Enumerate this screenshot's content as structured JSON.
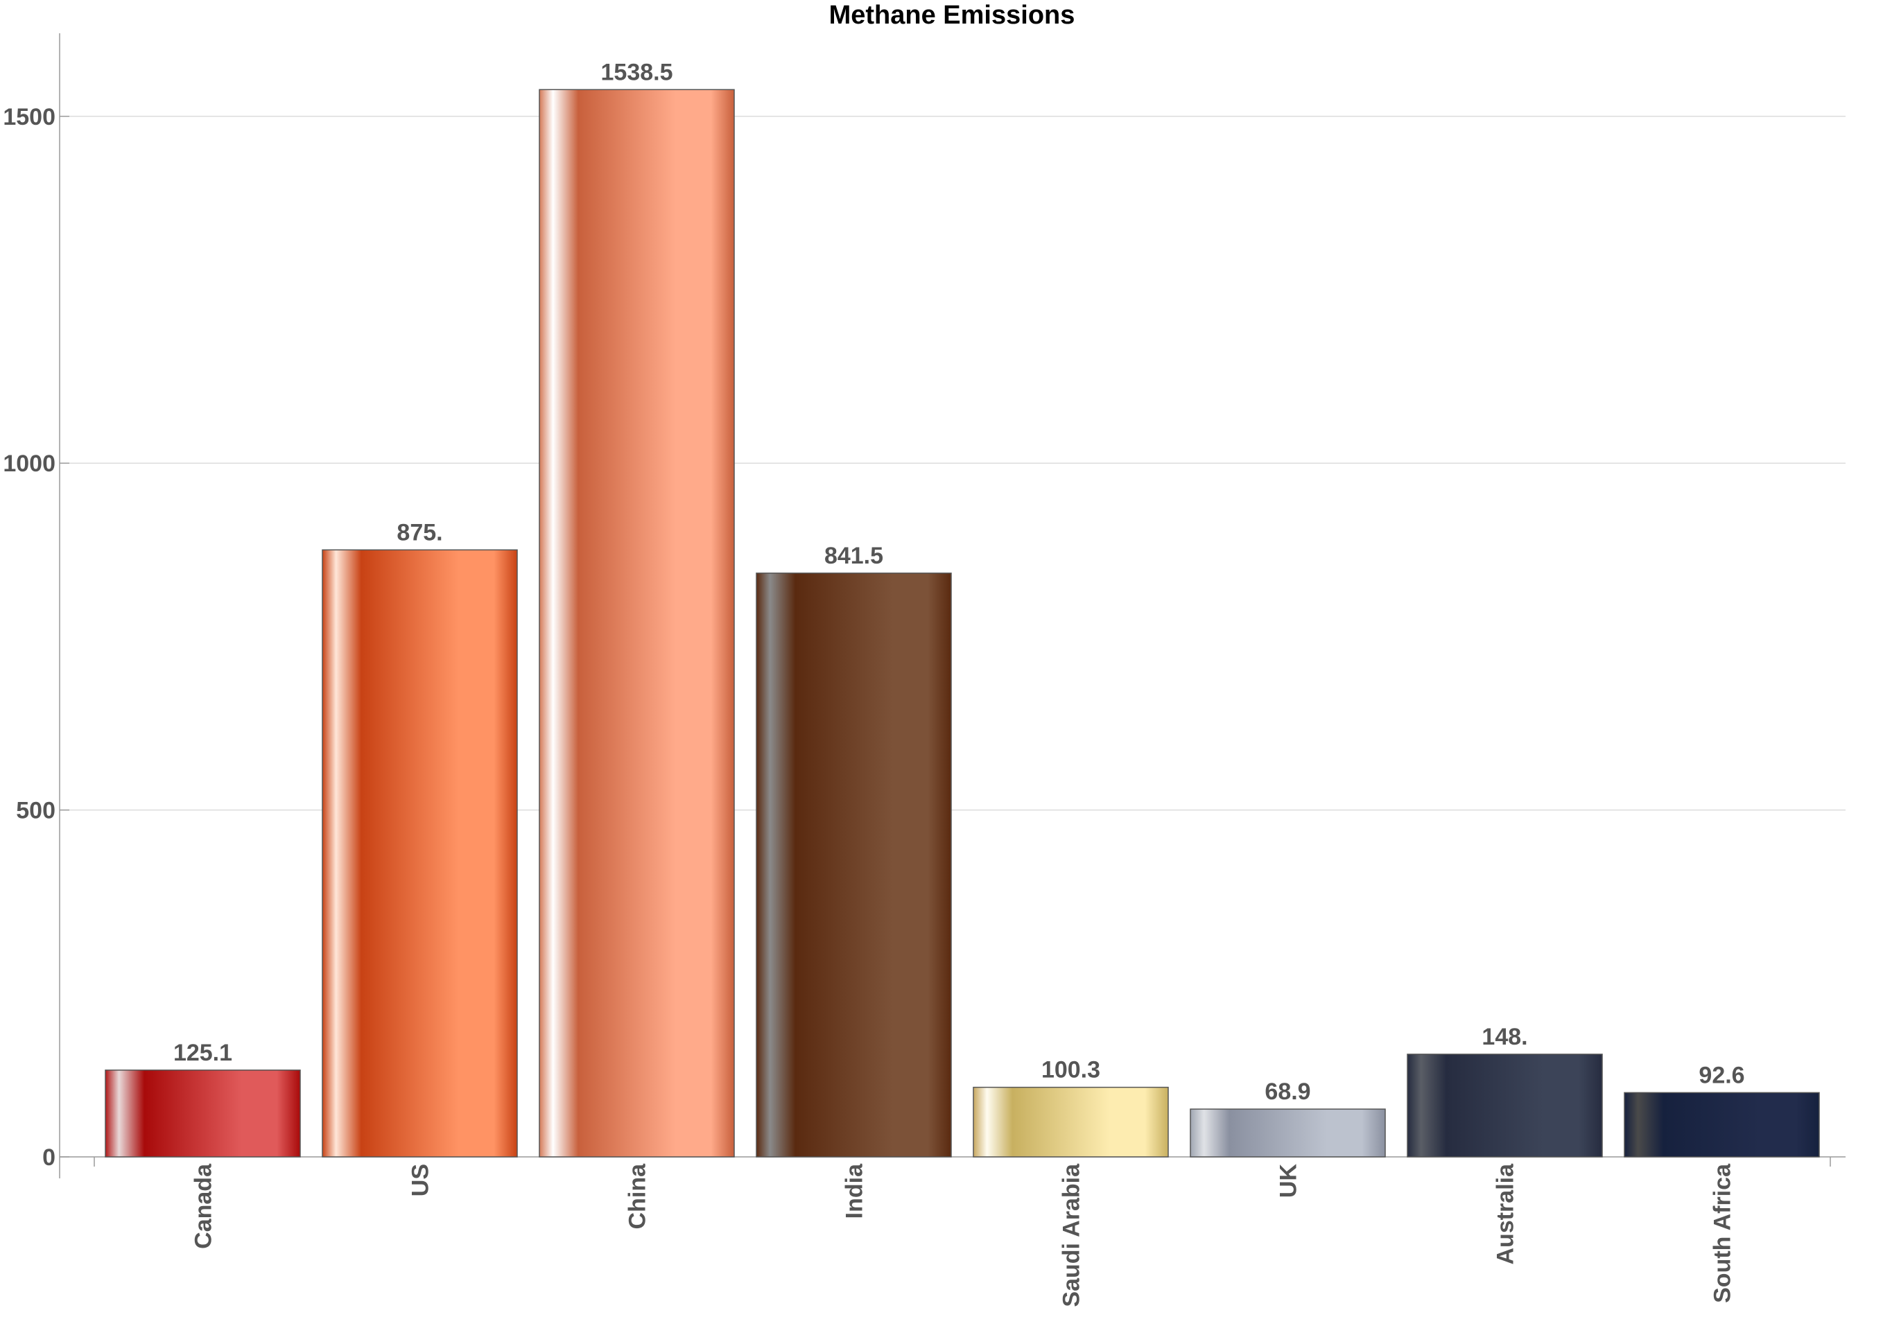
{
  "chart_data": {
    "type": "bar",
    "title": "Methane Emissions",
    "xlabel": "",
    "ylabel": "",
    "categories": [
      "Canada",
      "US",
      "China",
      "India",
      "Saudi Arabia",
      "UK",
      "Australia",
      "South Africa"
    ],
    "values": [
      125.1,
      875.0,
      1538.5,
      841.5,
      100.3,
      68.9,
      148.0,
      92.6
    ],
    "value_labels": [
      "125.1",
      "875.",
      "1538.5",
      "841.5",
      "100.3",
      "68.9",
      "148.",
      "92.6"
    ],
    "ylim": [
      0,
      1620
    ],
    "yticks": [
      0,
      500,
      1000,
      1500
    ],
    "ytick_labels": [
      "0",
      "500",
      "1000",
      "1500"
    ],
    "grid": true,
    "legend": "none",
    "bar_colors": [
      {
        "highlight": "#e8d8d8",
        "dark": "#a80a0a",
        "mid": "#e05a5a",
        "edge": "#b01818"
      },
      {
        "highlight": "#ffe6d8",
        "dark": "#c84214",
        "mid": "#ff9364",
        "edge": "#c84214"
      },
      {
        "highlight": "#ffffff",
        "dark": "#c8603c",
        "mid": "#ffaa8a",
        "edge": "#d47a58"
      },
      {
        "highlight": "#8a8a8a",
        "dark": "#5a2a10",
        "mid": "#7c5238",
        "edge": "#5a2a10"
      },
      {
        "highlight": "#fffcf0",
        "dark": "#c8b060",
        "mid": "#fdecb0",
        "edge": "#c8a860"
      },
      {
        "highlight": "#e0e2e6",
        "dark": "#8a90a0",
        "mid": "#bcc2ce",
        "edge": "#a0a6b2"
      },
      {
        "highlight": "#5a5e66",
        "dark": "#262c40",
        "mid": "#3c4458",
        "edge": "#262c40"
      },
      {
        "highlight": "#4a4a4a",
        "dark": "#16213e",
        "mid": "#222c4c",
        "edge": "#16213e"
      }
    ]
  }
}
